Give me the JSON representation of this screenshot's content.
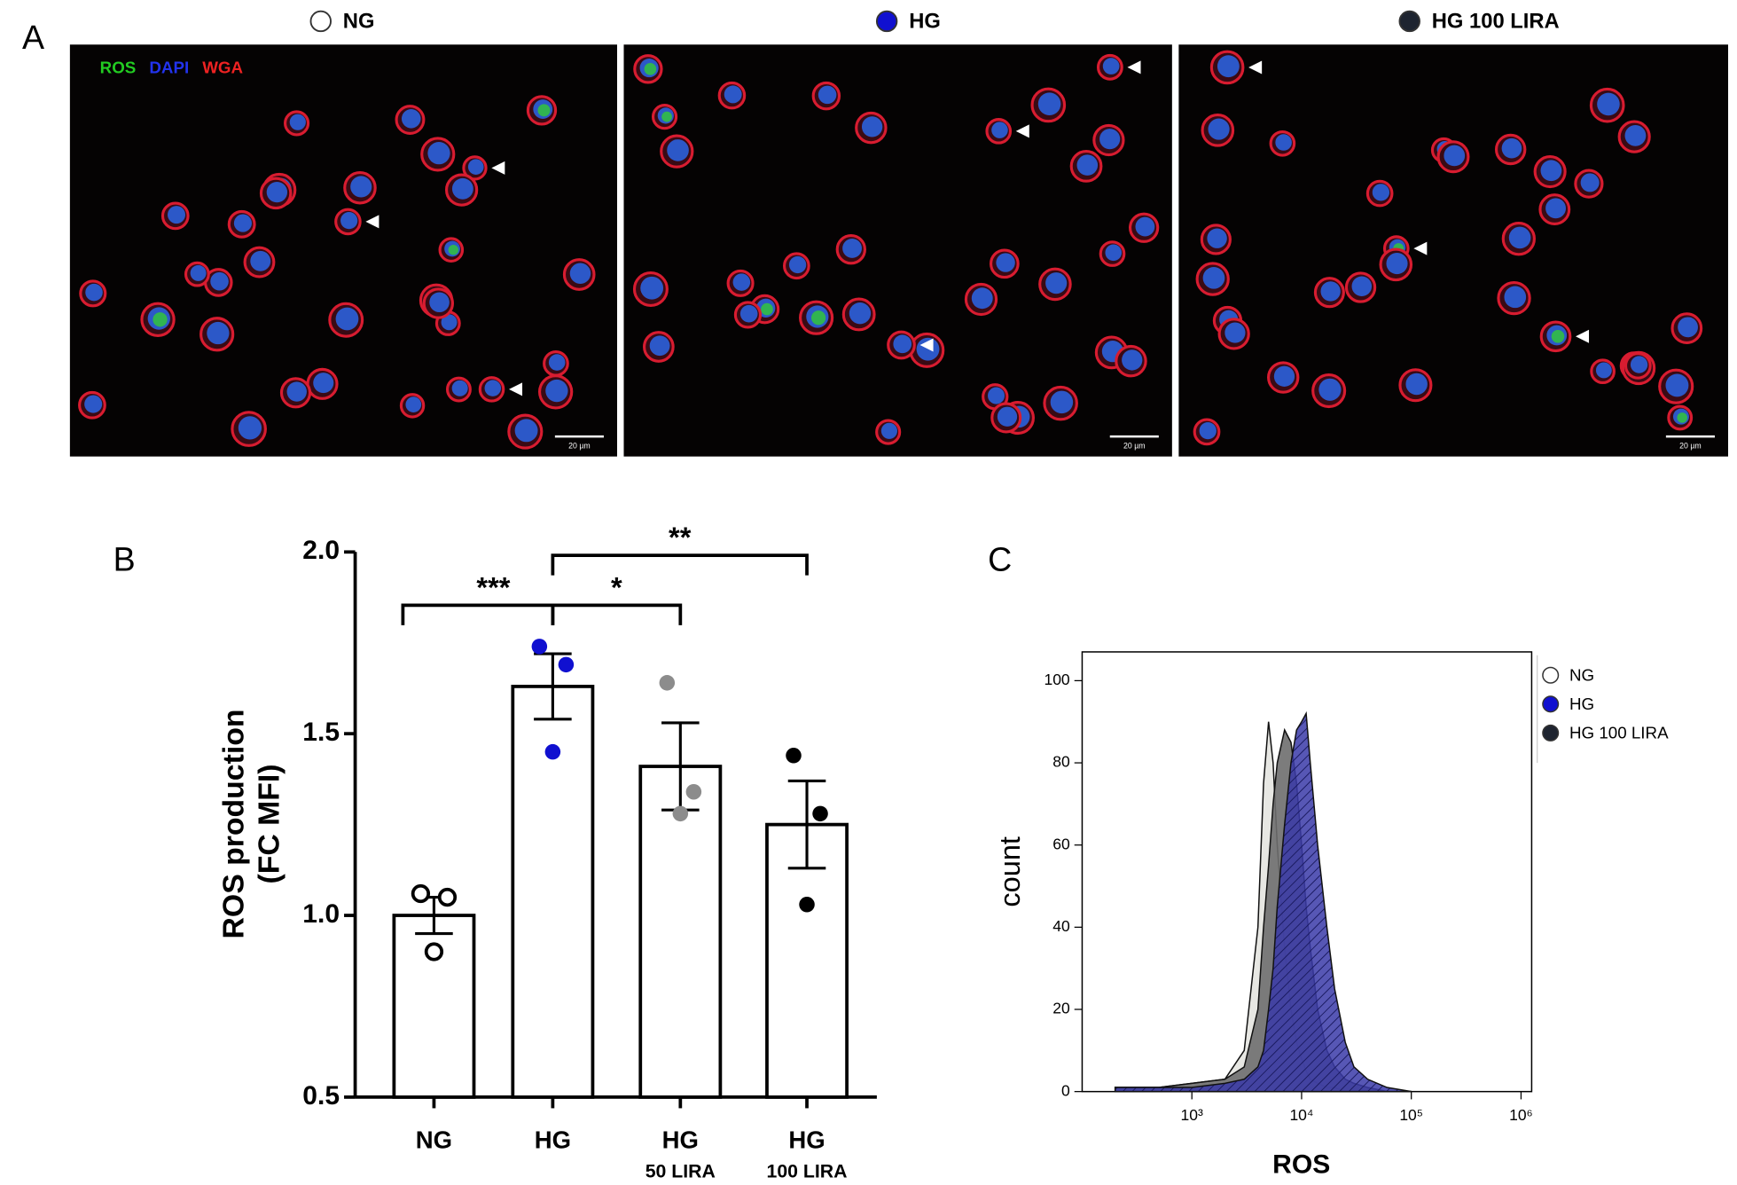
{
  "panel_labels": [
    "A",
    "B",
    "C"
  ],
  "panel_a": {
    "groups": [
      {
        "name": "NG",
        "color": "#ffffff"
      },
      {
        "name": "HG",
        "color": "#1010d0"
      },
      {
        "name": "HG 100 LIRA",
        "color": "#1e2430"
      }
    ],
    "channels": [
      {
        "name": "ROS",
        "color": "#22cc22"
      },
      {
        "name": "DAPI",
        "color": "#2233ee"
      },
      {
        "name": "WGA",
        "color": "#ee2222"
      }
    ],
    "scale_bar": "20 µm"
  },
  "chart_data": [
    {
      "type": "bar",
      "ylabel": [
        "ROS production",
        "(FC MFI)"
      ],
      "categories": [
        "NG",
        "HG",
        "HG",
        "HG"
      ],
      "sublabels": [
        null,
        null,
        "50 LIRA",
        "100 LIRA"
      ],
      "values": [
        1.0,
        1.63,
        1.41,
        1.25
      ],
      "errors": [
        0.05,
        0.09,
        0.12,
        0.12
      ],
      "points": [
        [
          1.06,
          1.05,
          0.9
        ],
        [
          1.74,
          1.69,
          1.45
        ],
        [
          1.64,
          1.34,
          1.28
        ],
        [
          1.44,
          1.28,
          1.03
        ]
      ],
      "point_colors": [
        "#ffffff",
        "#1010d0",
        "#8c8c8c",
        "#000000"
      ],
      "ylim": [
        0.5,
        2.0
      ],
      "yticks": [
        0.5,
        {
          "value": 1,
          "label": "1.0"
        },
        1.5,
        {
          "value": 2,
          "label": "2.0"
        }
      ],
      "significance": [
        {
          "groups": [
            0,
            1
          ],
          "label": "***"
        },
        {
          "groups": [
            1,
            2
          ],
          "label": "*"
        },
        {
          "groups": [
            1,
            3
          ],
          "label": "**"
        }
      ]
    },
    {
      "type": "area",
      "xlabel": "ROS",
      "ylabel": "count",
      "xscale": "log",
      "x": [
        200,
        500,
        1000,
        2000,
        3000,
        4000,
        4500,
        5000,
        5500,
        6000,
        7000,
        8000,
        9000,
        10000,
        11000,
        12000,
        14000,
        17000,
        20000,
        25000,
        30000,
        40000,
        60000,
        100000
      ],
      "series": [
        {
          "name": "NG",
          "color": "#e4e4e0",
          "values": [
            1,
            1,
            2,
            3,
            10,
            40,
            75,
            90,
            80,
            60,
            35,
            20,
            12,
            8,
            5,
            3,
            2,
            1,
            1,
            0,
            0,
            0,
            0,
            0
          ]
        },
        {
          "name": "HG",
          "color": "#3a3aa8",
          "values": [
            1,
            1,
            1,
            2,
            3,
            6,
            10,
            20,
            30,
            45,
            65,
            80,
            88,
            90,
            92,
            80,
            60,
            40,
            25,
            12,
            6,
            3,
            1,
            0
          ]
        },
        {
          "name": "HG 100 LIRA",
          "color": "#6e6e6e",
          "values": [
            1,
            1,
            2,
            3,
            6,
            20,
            40,
            55,
            70,
            80,
            88,
            85,
            75,
            60,
            45,
            35,
            20,
            10,
            6,
            3,
            2,
            1,
            0,
            0
          ]
        }
      ],
      "draw_order": [
        0,
        2,
        1
      ],
      "xlim": [
        100,
        1250000
      ],
      "xticks": [
        {
          "value": 1000,
          "label": "10³"
        },
        {
          "value": 10000,
          "label": "10⁴"
        },
        {
          "value": 100000,
          "label": "10⁵"
        },
        {
          "value": 1000000,
          "label": "10⁶"
        }
      ],
      "ylim": [
        0,
        107
      ],
      "yticks": [
        0,
        20,
        40,
        60,
        80,
        100
      ],
      "legend": "right"
    }
  ]
}
